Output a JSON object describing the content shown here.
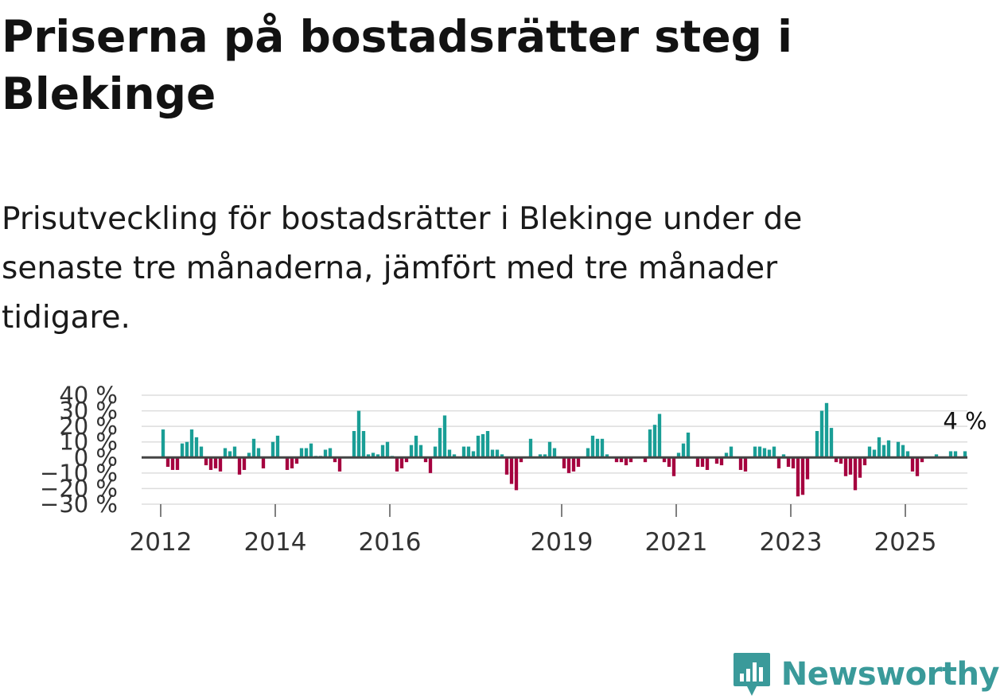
{
  "title": "Priserna på bostadsrätter steg i Blekinge",
  "subtitle": "Prisutveckling för bostadsrätter i Blekinge under de senaste tre månaderna, jämfört med tre månader tidigare.",
  "brand": {
    "name": "Newsworthy",
    "logo_icon": "newsworthy-logo-icon"
  },
  "colors": {
    "positive": "#1a9e96",
    "negative": "#a5003f",
    "zero_line": "#444444",
    "grid": "#dddddd",
    "brand": "#3a9a9a"
  },
  "chart_data": {
    "type": "bar",
    "title": "Priserna på bostadsrätter steg i Blekinge",
    "xlabel": "",
    "ylabel": "",
    "ylim": [
      -30,
      40
    ],
    "yticks": [
      40,
      30,
      20,
      10,
      0,
      -10,
      -20,
      -30
    ],
    "ytick_labels": [
      "40 %",
      "30 %",
      "20 %",
      "10 %",
      "0 %",
      "−10 %",
      "−20 %",
      "−30 %"
    ],
    "xtick_labels": [
      "2012",
      "2014",
      "2016",
      "2019",
      "2021",
      "2023",
      "2025"
    ],
    "xtick_years": [
      2012,
      2014,
      2016,
      2019,
      2021,
      2023,
      2025
    ],
    "start": "2011-09",
    "unit": "%",
    "last_label": "4 %",
    "values": [
      0,
      0,
      0,
      0,
      18,
      -6,
      -8,
      -8,
      9,
      10,
      18,
      13,
      7,
      -5,
      -8,
      -7,
      -9,
      6,
      4,
      7,
      -11,
      -8,
      3,
      12,
      6,
      -7,
      0,
      10,
      14,
      0,
      -8,
      -7,
      -4,
      6,
      6,
      9,
      1,
      1,
      5,
      6,
      -3,
      -9,
      0,
      0,
      17,
      30,
      17,
      2,
      3,
      2,
      8,
      10,
      1,
      -9,
      -7,
      -3,
      8,
      14,
      8,
      -3,
      -10,
      7,
      19,
      27,
      5,
      2,
      0,
      7,
      7,
      4,
      14,
      15,
      17,
      5,
      5,
      2,
      -11,
      -17,
      -21,
      -3,
      0,
      12,
      0,
      2,
      2,
      10,
      6,
      0,
      -7,
      -10,
      -9,
      -6,
      0,
      6,
      14,
      12,
      12,
      2,
      0,
      -3,
      -3,
      -5,
      -3,
      0,
      0,
      -3,
      18,
      21,
      28,
      -3,
      -6,
      -12,
      3,
      9,
      16,
      0,
      -6,
      -6,
      -8,
      0,
      -4,
      -5,
      3,
      7,
      0,
      -8,
      -9,
      0,
      7,
      7,
      6,
      5,
      7,
      -7,
      2,
      -6,
      -7,
      -25,
      -24,
      -14,
      0,
      17,
      30,
      35,
      19,
      -3,
      -4,
      -12,
      -11,
      -21,
      -13,
      -5,
      7,
      5,
      13,
      8,
      11,
      0,
      10,
      8,
      4,
      -9,
      -12,
      -3,
      0,
      0,
      2,
      0,
      0,
      4,
      4,
      0,
      4
    ]
  }
}
